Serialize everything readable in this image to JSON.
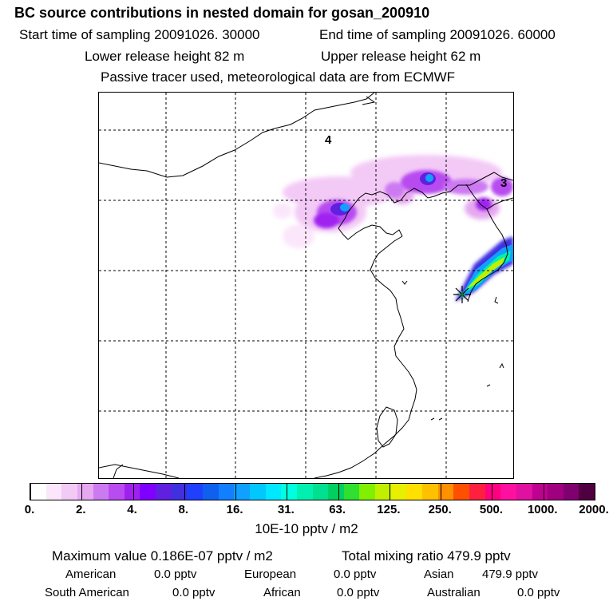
{
  "header": {
    "title": "BC  source contributions in nested domain for gosan_200910",
    "start_time": "Start time of sampling 20091026. 30000",
    "end_time": "End time of sampling 20091026. 60000",
    "lower_release": "Lower release height   82 m",
    "upper_release": "Upper release height   62 m",
    "tracer_note": "Passive tracer used, meteorological data are from ECMWF"
  },
  "map": {
    "labels": [
      "4",
      "3"
    ],
    "station_marker": "asterisk-icon"
  },
  "colorbar": {
    "tick_labels": [
      "0.",
      "2.",
      "4.",
      "8.",
      "16.",
      "31.",
      "63.",
      "125.",
      "250.",
      "500.",
      "1000.",
      "2000."
    ],
    "colors": [
      "#ffffff",
      "#fbe6fb",
      "#f3c9f6",
      "#e6a8f0",
      "#cc7af2",
      "#b84cf0",
      "#a020f0",
      "#8000ff",
      "#6020e0",
      "#4030e0",
      "#2040ff",
      "#1060f0",
      "#1080ff",
      "#10a0ff",
      "#00c8ff",
      "#00e8ff",
      "#00ffe0",
      "#00f0b0",
      "#00e090",
      "#00d060",
      "#30e030",
      "#80f000",
      "#c0f000",
      "#e8f000",
      "#ffe000",
      "#ffc000",
      "#ff9000",
      "#ff5000",
      "#ff2040",
      "#ff0080",
      "#ff10a0",
      "#e010a0",
      "#c00090",
      "#a00080",
      "#800070",
      "#500040"
    ],
    "unit": "10E-10 pptv / m2"
  },
  "stats": {
    "max_value": "Maximum value  0.186E-07 pptv / m2",
    "total_mixing": "Total mixing ratio      479.9 pptv",
    "american": {
      "label": "American",
      "value": "0.0 pptv"
    },
    "european": {
      "label": "European",
      "value": "0.0 pptv"
    },
    "asian": {
      "label": "Asian",
      "value": "479.9 pptv"
    },
    "south_american": {
      "label": "South American",
      "value": "0.0 pptv"
    },
    "african": {
      "label": "African",
      "value": "0.0 pptv"
    },
    "australian": {
      "label": "Australian",
      "value": "0.0 pptv"
    }
  }
}
